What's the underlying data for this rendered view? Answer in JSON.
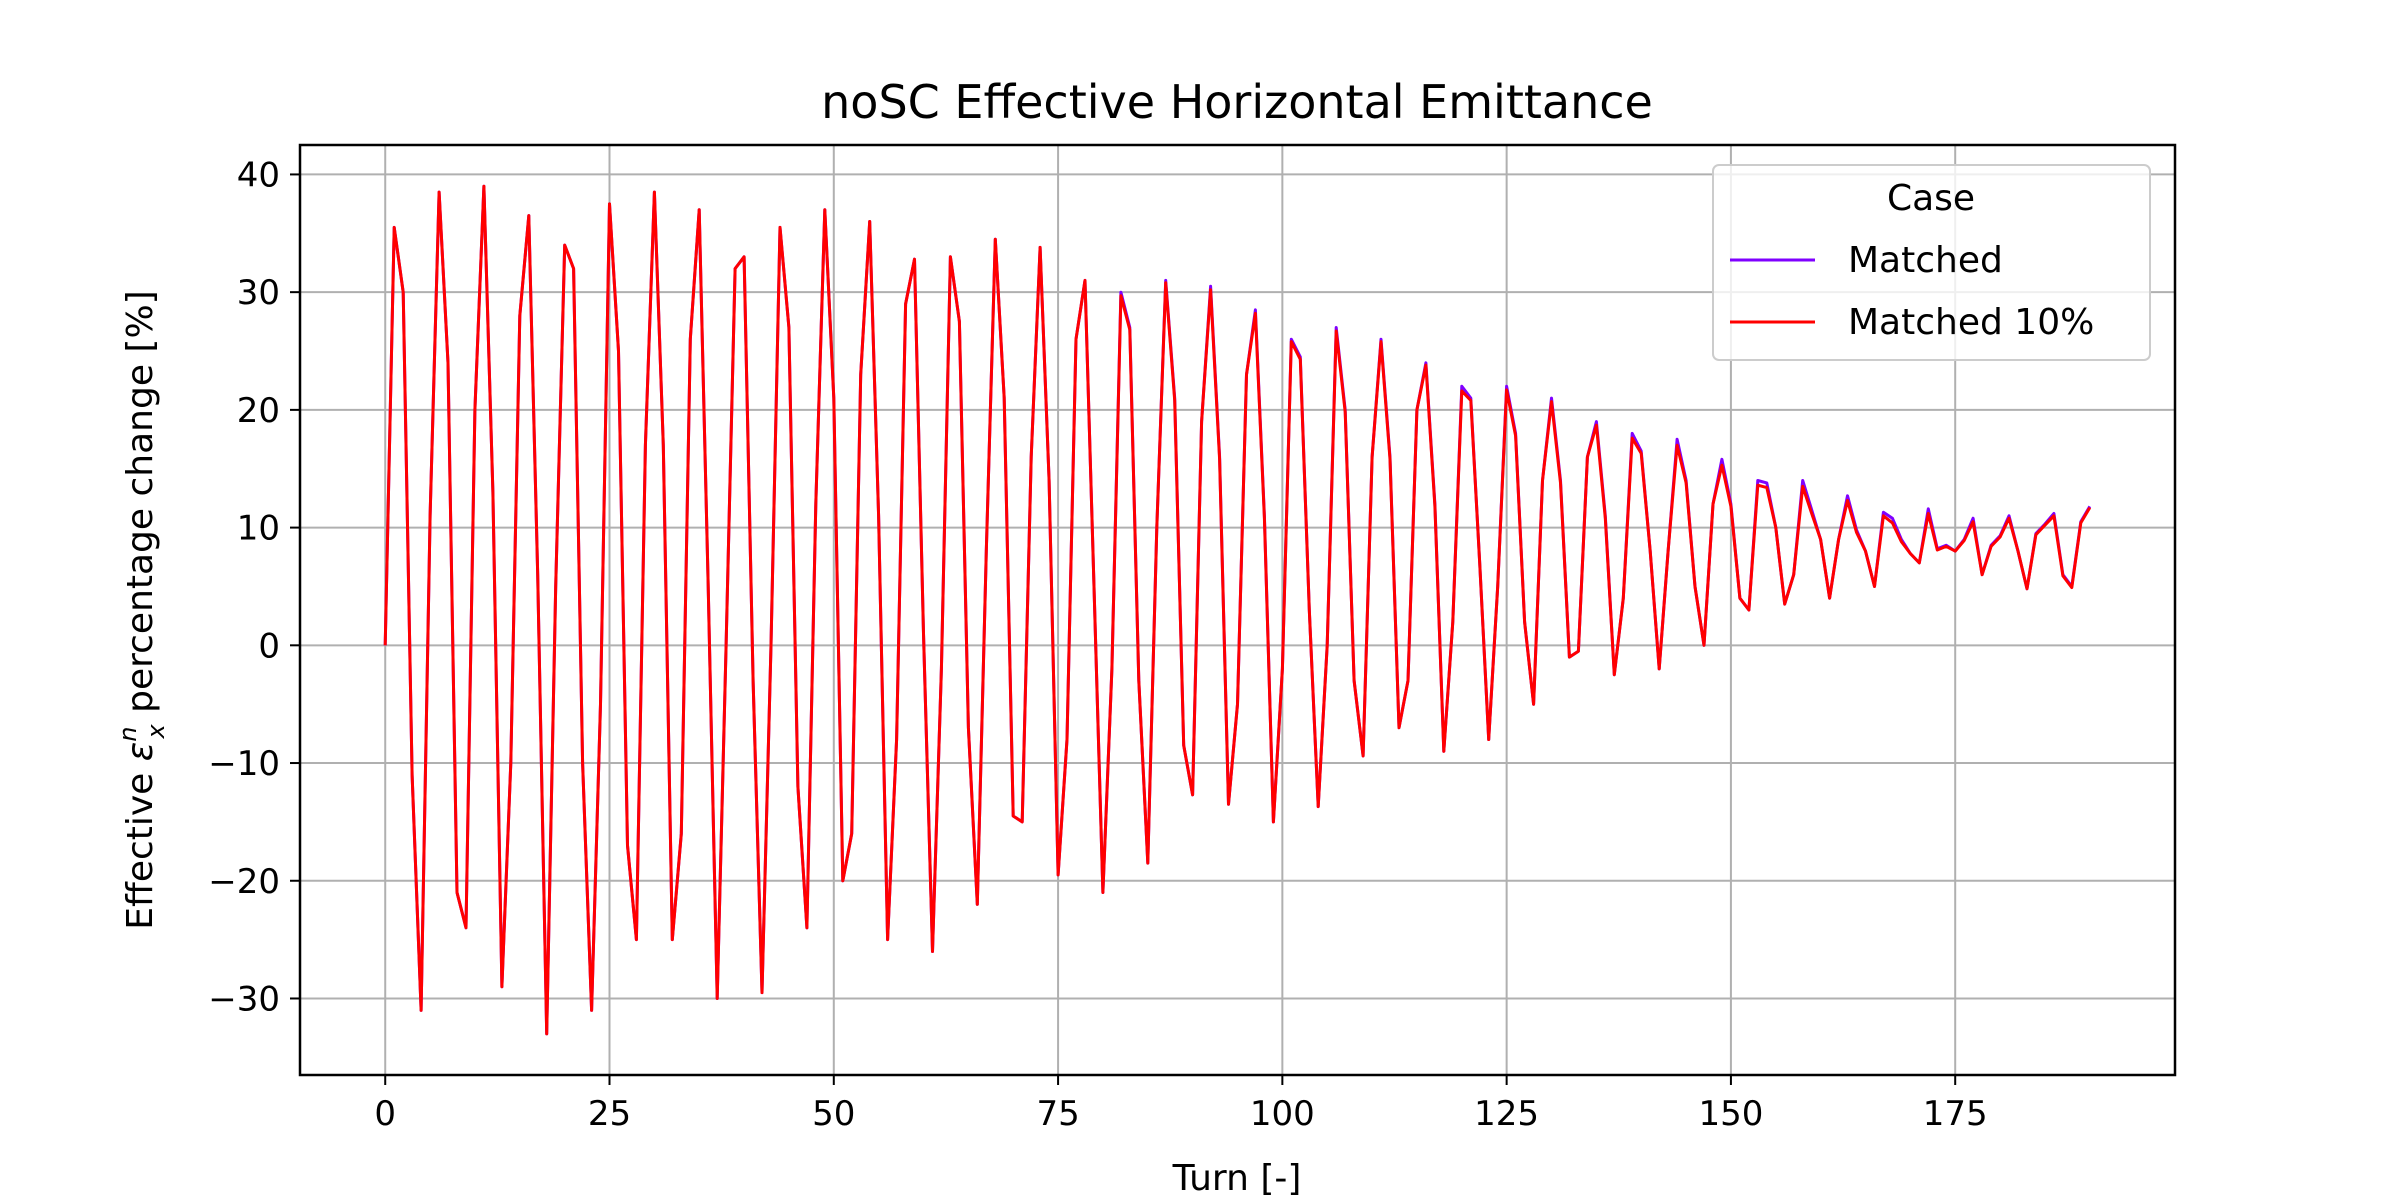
{
  "chart_data": {
    "type": "line",
    "title": "noSC Effective Horizontal Emittance",
    "xlabel": "Turn [-]",
    "ylabel_prefix": "Effective ",
    "ylabel_symbol": "ε",
    "ylabel_sub": "x",
    "ylabel_sup": "n",
    "ylabel_suffix": " percentage change [%]",
    "xlim": [
      -9.5,
      199.5
    ],
    "ylim": [
      -36.5,
      42.5
    ],
    "xticks": [
      0,
      25,
      50,
      75,
      100,
      125,
      150,
      175
    ],
    "yticks": [
      -30,
      -20,
      -10,
      0,
      10,
      20,
      30,
      40
    ],
    "grid": true,
    "legend": {
      "title": "Case",
      "position": "top-right"
    },
    "series": [
      {
        "name": "Matched",
        "color": "#7f00ff",
        "x": [
          0,
          1,
          2,
          3,
          4,
          5,
          6,
          7,
          8,
          9,
          10,
          11,
          12,
          13,
          14,
          15,
          16,
          17,
          18,
          19,
          20,
          21,
          22,
          23,
          24,
          25,
          26,
          27,
          28,
          29,
          30,
          31,
          32,
          33,
          34,
          35,
          36,
          37,
          38,
          39,
          40,
          41,
          42,
          43,
          44,
          45,
          46,
          47,
          48,
          49,
          50,
          51,
          52,
          53,
          54,
          55,
          56,
          57,
          58,
          59,
          60,
          61,
          62,
          63,
          64,
          65,
          66,
          67,
          68,
          69,
          70,
          71,
          72,
          73,
          74,
          75,
          76,
          77,
          78,
          79,
          80,
          81,
          82,
          83,
          84,
          85,
          86,
          87,
          88,
          89,
          90,
          91,
          92,
          93,
          94,
          95,
          96,
          97,
          98,
          99,
          100,
          101,
          102,
          103,
          104,
          105,
          106,
          107,
          108,
          109,
          110,
          111,
          112,
          113,
          114,
          115,
          116,
          117,
          118,
          119,
          120,
          121,
          122,
          123,
          124,
          125,
          126,
          127,
          128,
          129,
          130,
          131,
          132,
          133,
          134,
          135,
          136,
          137,
          138,
          139,
          140,
          141,
          142,
          143,
          144,
          145,
          146,
          147,
          148,
          149,
          150,
          151,
          152,
          153,
          154,
          155,
          156,
          157,
          158,
          159,
          160,
          161,
          162,
          163,
          164,
          165,
          166,
          167,
          168,
          169,
          170,
          171,
          172,
          173,
          174,
          175,
          176,
          177,
          178,
          179,
          180,
          181,
          182,
          183,
          184,
          185,
          186,
          187,
          188,
          189,
          190
        ],
        "y": [
          0,
          35.5,
          30,
          -11,
          -31,
          11,
          38.5,
          24,
          -21,
          -24,
          20,
          39,
          13,
          -29,
          -10,
          28,
          36.5,
          6,
          -33,
          5,
          34,
          32,
          -10,
          -31,
          -5,
          37.5,
          25,
          -17,
          -25,
          17,
          38.5,
          17,
          -25,
          -16,
          26,
          37,
          5,
          -30,
          0,
          32,
          33,
          -3,
          -29.5,
          0,
          35.5,
          27,
          -12,
          -24,
          12,
          37,
          21,
          -20,
          -16,
          23,
          36,
          11,
          -25,
          -8,
          29,
          32.8,
          1,
          -26,
          -2,
          33,
          27.5,
          -7,
          -22,
          8,
          34.5,
          21,
          -14.5,
          -15,
          16,
          33.8,
          14,
          -19.5,
          -8,
          26,
          31,
          5,
          -21,
          -2,
          30,
          27,
          -3,
          -18.5,
          10,
          31,
          21,
          -8.5,
          -12.7,
          19,
          30.5,
          16,
          -13.5,
          -5,
          23,
          28.5,
          11,
          -15,
          -2,
          26,
          24.5,
          3,
          -13.7,
          0,
          27,
          20,
          -3,
          -9.4,
          16,
          26,
          16,
          -7,
          -3,
          20,
          24,
          12,
          -9,
          2,
          22,
          21,
          7,
          -8,
          5,
          22,
          18,
          2,
          -5,
          14,
          21,
          14,
          -1,
          -0.5,
          16,
          19,
          11,
          -2.5,
          4,
          18,
          16.5,
          8,
          -2,
          8,
          17.5,
          14,
          5,
          0,
          12,
          15.8,
          12,
          4,
          3,
          14,
          13.8,
          10,
          3.5,
          6,
          14,
          11.5,
          9,
          4,
          9,
          12.7,
          9.8,
          8,
          5,
          11.3,
          10.8,
          9,
          7.8,
          7,
          11.6,
          8.2,
          8.5,
          8,
          9,
          10.8,
          6,
          8.5,
          9.3,
          11,
          8,
          4.8,
          9.5,
          10.3,
          11.2,
          6,
          5,
          10.5,
          11.8
        ]
      },
      {
        "name": "Matched 10%",
        "color": "#ff0000",
        "x": [
          0,
          1,
          2,
          3,
          4,
          5,
          6,
          7,
          8,
          9,
          10,
          11,
          12,
          13,
          14,
          15,
          16,
          17,
          18,
          19,
          20,
          21,
          22,
          23,
          24,
          25,
          26,
          27,
          28,
          29,
          30,
          31,
          32,
          33,
          34,
          35,
          36,
          37,
          38,
          39,
          40,
          41,
          42,
          43,
          44,
          45,
          46,
          47,
          48,
          49,
          50,
          51,
          52,
          53,
          54,
          55,
          56,
          57,
          58,
          59,
          60,
          61,
          62,
          63,
          64,
          65,
          66,
          67,
          68,
          69,
          70,
          71,
          72,
          73,
          74,
          75,
          76,
          77,
          78,
          79,
          80,
          81,
          82,
          83,
          84,
          85,
          86,
          87,
          88,
          89,
          90,
          91,
          92,
          93,
          94,
          95,
          96,
          97,
          98,
          99,
          100,
          101,
          102,
          103,
          104,
          105,
          106,
          107,
          108,
          109,
          110,
          111,
          112,
          113,
          114,
          115,
          116,
          117,
          118,
          119,
          120,
          121,
          122,
          123,
          124,
          125,
          126,
          127,
          128,
          129,
          130,
          131,
          132,
          133,
          134,
          135,
          136,
          137,
          138,
          139,
          140,
          141,
          142,
          143,
          144,
          145,
          146,
          147,
          148,
          149,
          150,
          151,
          152,
          153,
          154,
          155,
          156,
          157,
          158,
          159,
          160,
          161,
          162,
          163,
          164,
          165,
          166,
          167,
          168,
          169,
          170,
          171,
          172,
          173,
          174,
          175,
          176,
          177,
          178,
          179,
          180,
          181,
          182,
          183,
          184,
          185,
          186,
          187,
          188,
          189,
          190
        ],
        "y": [
          0,
          35.5,
          30,
          -11,
          -31,
          11,
          38.5,
          24,
          -21,
          -24,
          20,
          39,
          13,
          -29,
          -10,
          28,
          36.5,
          6,
          -33,
          5,
          34,
          32,
          -10,
          -31,
          -5,
          37.5,
          25,
          -17,
          -25,
          17,
          38.5,
          17,
          -25,
          -16,
          26,
          37,
          5,
          -30,
          0,
          32,
          33,
          -3,
          -29.5,
          0,
          35.5,
          27,
          -12,
          -24,
          12,
          37,
          21,
          -20,
          -16,
          23,
          36,
          11,
          -25,
          -8,
          29,
          32.8,
          1,
          -26,
          -2,
          33,
          27.5,
          -7,
          -22,
          8,
          34.5,
          21,
          -14.5,
          -15,
          16,
          33.8,
          14,
          -19.5,
          -8,
          26,
          31,
          5,
          -21,
          -2,
          29.7,
          26.8,
          -3,
          -18.5,
          10,
          30.8,
          20.8,
          -8.5,
          -12.7,
          19,
          30.2,
          15.8,
          -13.5,
          -5,
          23,
          28.2,
          10.8,
          -15,
          -2,
          25.8,
          24.3,
          3,
          -13.7,
          0,
          26.7,
          19.8,
          -3,
          -9.4,
          16,
          25.8,
          15.8,
          -7,
          -3,
          20,
          23.8,
          11.8,
          -9,
          2,
          21.6,
          20.8,
          7,
          -8,
          5,
          21.7,
          17.8,
          2,
          -5,
          14,
          20.7,
          13.8,
          -1,
          -0.5,
          16,
          18.7,
          10.8,
          -2.5,
          4,
          17.6,
          16.3,
          8,
          -2,
          8,
          17,
          13.8,
          5,
          0,
          12,
          15.3,
          11.8,
          4,
          3,
          13.6,
          13.4,
          10,
          3.5,
          6,
          13.5,
          11.2,
          9,
          4,
          9,
          12.3,
          9.6,
          8,
          5,
          11,
          10.4,
          8.8,
          7.8,
          7,
          11.2,
          8.1,
          8.4,
          8,
          8.9,
          10.5,
          6,
          8.4,
          9.2,
          10.8,
          8,
          4.8,
          9.4,
          10.2,
          11,
          5.9,
          4.9,
          10.4,
          11.7
        ]
      }
    ]
  }
}
